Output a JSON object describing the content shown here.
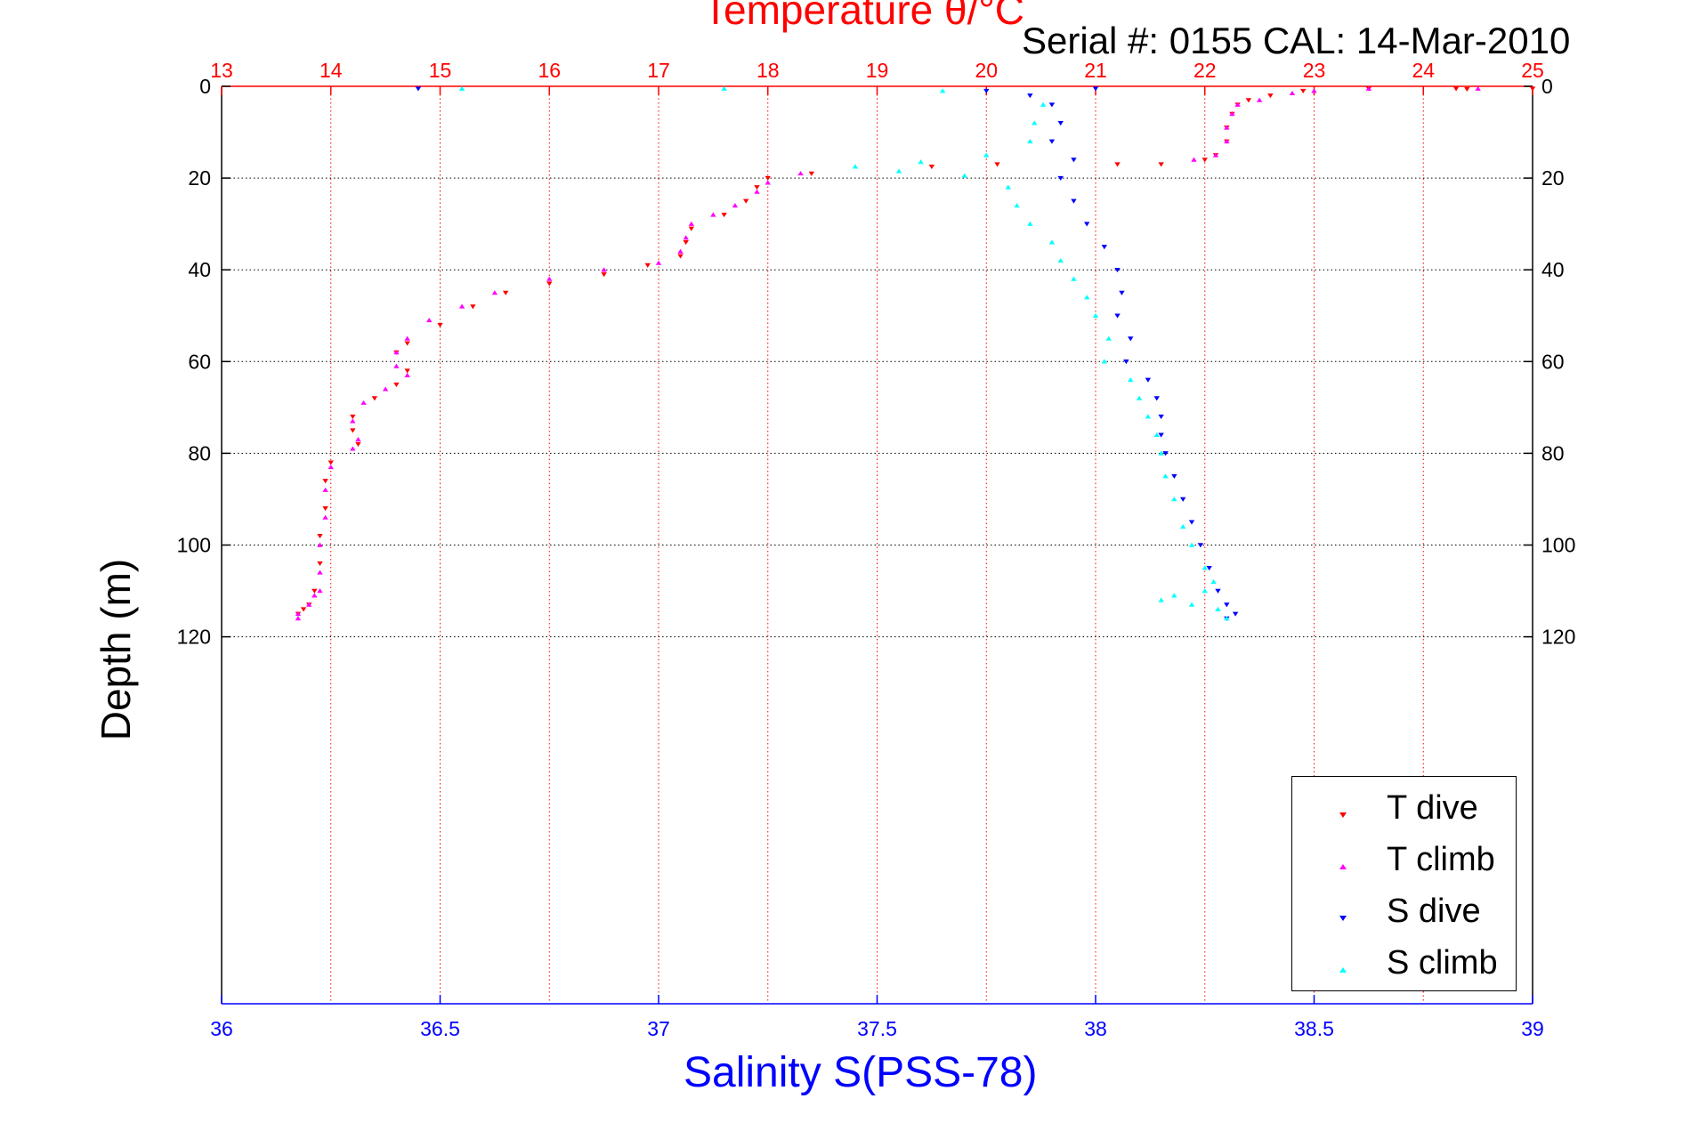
{
  "titles": {
    "top_axis_label": "Temperature θ/°C",
    "bottom_axis_label": "Salinity S(PSS-78)",
    "y_axis_label": "Depth (m)",
    "serial_info": "Serial #: 0155  CAL: 14-Mar-2010"
  },
  "colors": {
    "t_dive": "#ff0000",
    "t_climb": "#ff00ff",
    "s_dive": "#0000ff",
    "s_climb": "#00ffff",
    "top_axis": "#ff0000",
    "bottom_axis": "#0000ff"
  },
  "chart_data": {
    "type": "scatter",
    "y_axis": {
      "label": "Depth (m)",
      "range": [
        0,
        200
      ],
      "reversed": true,
      "ticks": [
        0,
        20,
        40,
        60,
        80,
        100,
        120
      ],
      "tick_labels": [
        "0",
        "20",
        "40",
        "60",
        "80",
        "100",
        "120"
      ]
    },
    "top_axis": {
      "label": "Temperature θ/°C",
      "range": [
        13,
        25
      ],
      "ticks": [
        13,
        14,
        15,
        16,
        17,
        18,
        19,
        20,
        21,
        22,
        23,
        24,
        25
      ],
      "tick_labels": [
        "13",
        "14",
        "15",
        "16",
        "17",
        "18",
        "19",
        "20",
        "21",
        "22",
        "23",
        "24",
        "25"
      ]
    },
    "bottom_axis": {
      "label": "Salinity S(PSS-78)",
      "range": [
        36,
        39
      ],
      "ticks": [
        36,
        36.5,
        37,
        37.5,
        38,
        38.5,
        39
      ],
      "tick_labels": [
        "36",
        "36.5",
        "37",
        "37.5",
        "38",
        "38.5",
        "39"
      ]
    },
    "grid": true,
    "legend_position": "bottom-right",
    "series": [
      {
        "name": "T dive",
        "axis": "temperature",
        "marker": "triangle-down",
        "points": [
          [
            22.9,
            1
          ],
          [
            22.6,
            2
          ],
          [
            22.4,
            3
          ],
          [
            22.3,
            4
          ],
          [
            22.25,
            6
          ],
          [
            22.2,
            9
          ],
          [
            22.2,
            12
          ],
          [
            22.1,
            15
          ],
          [
            22.0,
            16
          ],
          [
            21.6,
            17
          ],
          [
            21.2,
            17
          ],
          [
            20.1,
            17
          ],
          [
            19.5,
            17.5
          ],
          [
            18.4,
            19
          ],
          [
            18.0,
            20
          ],
          [
            17.9,
            22
          ],
          [
            17.8,
            25
          ],
          [
            17.6,
            28
          ],
          [
            17.3,
            31
          ],
          [
            17.25,
            34
          ],
          [
            17.2,
            37
          ],
          [
            16.9,
            39
          ],
          [
            16.5,
            41
          ],
          [
            16.0,
            43
          ],
          [
            15.6,
            45
          ],
          [
            15.3,
            48
          ],
          [
            15.0,
            52
          ],
          [
            14.7,
            56
          ],
          [
            14.6,
            58
          ],
          [
            14.7,
            62
          ],
          [
            14.6,
            65
          ],
          [
            14.4,
            68
          ],
          [
            14.2,
            72
          ],
          [
            14.2,
            75
          ],
          [
            14.25,
            78
          ],
          [
            14.0,
            82
          ],
          [
            13.95,
            86
          ],
          [
            13.95,
            92
          ],
          [
            13.9,
            98
          ],
          [
            13.9,
            104
          ],
          [
            13.85,
            110
          ],
          [
            13.8,
            113
          ],
          [
            13.75,
            114
          ],
          [
            13.7,
            115
          ],
          [
            24.3,
            0.5
          ],
          [
            25.0,
            0.5
          ],
          [
            23.5,
            0.5
          ],
          [
            24.4,
            0.6
          ]
        ]
      },
      {
        "name": "T climb",
        "axis": "temperature",
        "marker": "triangle-up",
        "points": [
          [
            23.0,
            1
          ],
          [
            22.8,
            1.5
          ],
          [
            22.5,
            3
          ],
          [
            22.3,
            4
          ],
          [
            22.25,
            6
          ],
          [
            22.2,
            9
          ],
          [
            22.2,
            12
          ],
          [
            22.1,
            15
          ],
          [
            21.9,
            16
          ],
          [
            18.3,
            19
          ],
          [
            18.0,
            21
          ],
          [
            17.9,
            23
          ],
          [
            17.7,
            26
          ],
          [
            17.5,
            28
          ],
          [
            17.3,
            30
          ],
          [
            17.25,
            33
          ],
          [
            17.2,
            36
          ],
          [
            17.0,
            38.5
          ],
          [
            16.5,
            40
          ],
          [
            16.0,
            42
          ],
          [
            15.5,
            45
          ],
          [
            15.2,
            48
          ],
          [
            14.9,
            51
          ],
          [
            14.7,
            55
          ],
          [
            14.6,
            58
          ],
          [
            14.6,
            61
          ],
          [
            14.7,
            63
          ],
          [
            14.5,
            66
          ],
          [
            14.3,
            69
          ],
          [
            14.2,
            73
          ],
          [
            14.25,
            77
          ],
          [
            14.2,
            79
          ],
          [
            14.0,
            83
          ],
          [
            13.95,
            88
          ],
          [
            13.95,
            94
          ],
          [
            13.9,
            100
          ],
          [
            13.9,
            106
          ],
          [
            13.85,
            111
          ],
          [
            13.8,
            113
          ],
          [
            13.7,
            115
          ],
          [
            13.7,
            116
          ],
          [
            13.9,
            110
          ],
          [
            23.5,
            0.5
          ],
          [
            24.5,
            0.5
          ]
        ]
      },
      {
        "name": "S dive",
        "axis": "salinity",
        "marker": "triangle-down",
        "points": [
          [
            37.85,
            2
          ],
          [
            37.9,
            4
          ],
          [
            37.92,
            8
          ],
          [
            37.9,
            12
          ],
          [
            37.95,
            16
          ],
          [
            37.92,
            20
          ],
          [
            37.95,
            25
          ],
          [
            37.98,
            30
          ],
          [
            38.02,
            35
          ],
          [
            38.05,
            40
          ],
          [
            38.06,
            45
          ],
          [
            38.05,
            50
          ],
          [
            38.08,
            55
          ],
          [
            38.07,
            60
          ],
          [
            38.12,
            64
          ],
          [
            38.14,
            68
          ],
          [
            38.15,
            72
          ],
          [
            38.15,
            76
          ],
          [
            38.16,
            80
          ],
          [
            38.18,
            85
          ],
          [
            38.2,
            90
          ],
          [
            38.22,
            95
          ],
          [
            38.24,
            100
          ],
          [
            38.26,
            105
          ],
          [
            38.28,
            110
          ],
          [
            38.3,
            113
          ],
          [
            38.32,
            115
          ],
          [
            38.3,
            116
          ],
          [
            36.45,
            0.5
          ],
          [
            37.75,
            1
          ],
          [
            38.0,
            0.5
          ]
        ]
      },
      {
        "name": "S climb",
        "axis": "salinity",
        "marker": "triangle-up",
        "points": [
          [
            37.88,
            4
          ],
          [
            37.86,
            8
          ],
          [
            37.85,
            12
          ],
          [
            37.75,
            15
          ],
          [
            37.6,
            16.5
          ],
          [
            37.45,
            17.5
          ],
          [
            37.55,
            18.5
          ],
          [
            37.7,
            19.5
          ],
          [
            37.8,
            22
          ],
          [
            37.82,
            26
          ],
          [
            37.85,
            30
          ],
          [
            37.9,
            34
          ],
          [
            37.92,
            38
          ],
          [
            37.95,
            42
          ],
          [
            37.98,
            46
          ],
          [
            38.0,
            50
          ],
          [
            38.03,
            55
          ],
          [
            38.02,
            60
          ],
          [
            38.08,
            64
          ],
          [
            38.1,
            68
          ],
          [
            38.12,
            72
          ],
          [
            38.14,
            76
          ],
          [
            38.15,
            80
          ],
          [
            38.16,
            85
          ],
          [
            38.18,
            90
          ],
          [
            38.2,
            96
          ],
          [
            38.22,
            100
          ],
          [
            38.25,
            105
          ],
          [
            38.27,
            108
          ],
          [
            38.25,
            110
          ],
          [
            38.18,
            111
          ],
          [
            38.15,
            112
          ],
          [
            38.22,
            113
          ],
          [
            38.28,
            114
          ],
          [
            38.3,
            116
          ],
          [
            36.55,
            0.5
          ],
          [
            37.15,
            0.5
          ],
          [
            37.65,
            1
          ]
        ]
      }
    ]
  },
  "legend": {
    "items": [
      {
        "label": "T dive",
        "marker": "triangle-down",
        "color": "#ff0000"
      },
      {
        "label": "T climb",
        "marker": "triangle-up",
        "color": "#ff00ff"
      },
      {
        "label": "S dive",
        "marker": "triangle-down",
        "color": "#0000ff"
      },
      {
        "label": "S climb",
        "marker": "triangle-up",
        "color": "#00ffff"
      }
    ]
  }
}
